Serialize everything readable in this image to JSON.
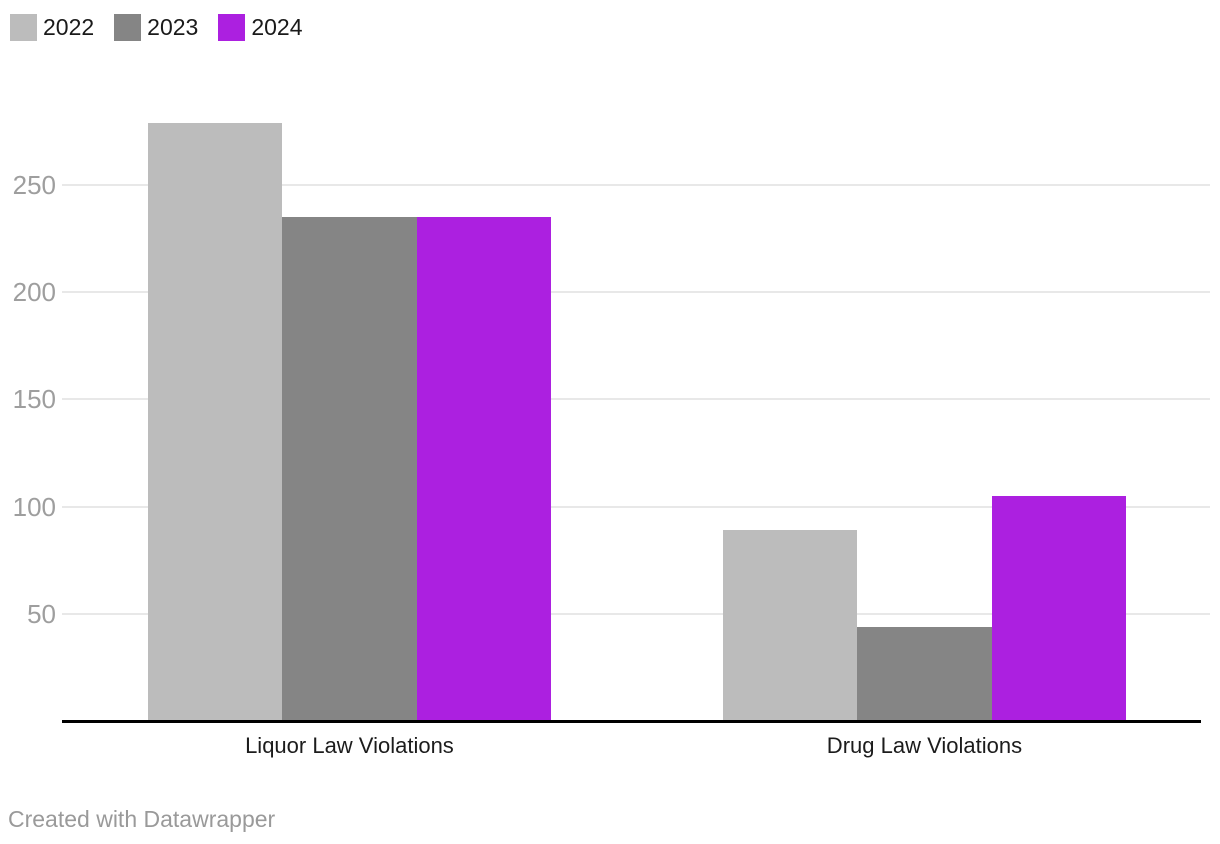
{
  "chart_data": {
    "type": "bar",
    "title": "",
    "categories": [
      "Liquor Law Violations",
      "Drug Law Violations"
    ],
    "series": [
      {
        "name": "2022",
        "color": "#bcbcbc",
        "values": [
          279,
          89
        ]
      },
      {
        "name": "2023",
        "color": "#858585",
        "values": [
          235,
          44
        ]
      },
      {
        "name": "2024",
        "color": "#ac20e0",
        "values": [
          235,
          105
        ]
      }
    ],
    "xlabel": "",
    "ylabel": "",
    "yticks": [
      50,
      100,
      150,
      200,
      250
    ],
    "ylim": [
      0,
      300
    ],
    "grid": true,
    "legend_position": "top-left"
  },
  "legend": {
    "items": [
      {
        "label": "2022",
        "color": "#bcbcbc"
      },
      {
        "label": "2023",
        "color": "#858585"
      },
      {
        "label": "2024",
        "color": "#ac20e0"
      }
    ]
  },
  "footer": {
    "credit": "Created with Datawrapper"
  },
  "colors": {
    "background": "#ffffff",
    "gridline": "#e8e8e8",
    "axis": "#000000",
    "tick_label": "#9e9e9e",
    "category_label": "#1c1c1c",
    "footer_text": "#9a9a9a"
  }
}
